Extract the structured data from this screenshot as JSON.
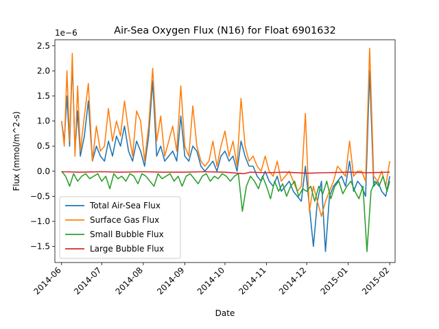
{
  "chart_data": {
    "type": "line",
    "title": "Air-Sea Oxygen Flux (N16) for Float 6901632",
    "xlabel": "Date",
    "ylabel": "Flux (mmol/m^2-s)",
    "y_offset_label": "1e−6",
    "y_scale": 1e-06,
    "xlim": [
      "2014-05-27",
      "2015-02-05"
    ],
    "ylim": [
      -1.82,
      2.62
    ],
    "x_ticks": [
      "2014-06-01",
      "2014-07-01",
      "2014-08-01",
      "2014-09-01",
      "2014-10-01",
      "2014-11-01",
      "2014-12-01",
      "2015-01-01",
      "2015-02-01"
    ],
    "x_tick_labels": [
      "2014-06",
      "2014-07",
      "2014-08",
      "2014-09",
      "2014-10",
      "2014-11",
      "2014-12",
      "2015-01",
      "2015-02"
    ],
    "y_ticks": [
      -1.5,
      -1.0,
      -0.5,
      0.0,
      0.5,
      1.0,
      1.5,
      2.0,
      2.5
    ],
    "y_tick_labels": [
      "−1.5",
      "−1.0",
      "−0.5",
      "0.0",
      "0.5",
      "1.0",
      "1.5",
      "2.0",
      "2.5"
    ],
    "legend_position": "lower-left",
    "grid": false,
    "series": [
      {
        "name": "Total Air-Sea Flux",
        "color": "#1f77b4",
        "x": [
          "2014-06-01",
          "2014-06-03",
          "2014-06-05",
          "2014-06-07",
          "2014-06-09",
          "2014-06-11",
          "2014-06-13",
          "2014-06-15",
          "2014-06-18",
          "2014-06-21",
          "2014-06-24",
          "2014-06-27",
          "2014-06-30",
          "2014-07-03",
          "2014-07-06",
          "2014-07-09",
          "2014-07-12",
          "2014-07-15",
          "2014-07-18",
          "2014-07-21",
          "2014-07-24",
          "2014-07-27",
          "2014-07-30",
          "2014-08-02",
          "2014-08-05",
          "2014-08-08",
          "2014-08-11",
          "2014-08-14",
          "2014-08-17",
          "2014-08-20",
          "2014-08-23",
          "2014-08-26",
          "2014-08-29",
          "2014-09-01",
          "2014-09-04",
          "2014-09-07",
          "2014-09-10",
          "2014-09-13",
          "2014-09-16",
          "2014-09-19",
          "2014-09-22",
          "2014-09-25",
          "2014-09-28",
          "2014-10-01",
          "2014-10-04",
          "2014-10-07",
          "2014-10-10",
          "2014-10-13",
          "2014-10-16",
          "2014-10-19",
          "2014-10-22",
          "2014-10-25",
          "2014-10-28",
          "2014-10-31",
          "2014-11-03",
          "2014-11-06",
          "2014-11-09",
          "2014-11-12",
          "2014-11-15",
          "2014-11-18",
          "2014-11-21",
          "2014-11-24",
          "2014-11-27",
          "2014-11-30",
          "2014-12-03",
          "2014-12-06",
          "2014-12-09",
          "2014-12-12",
          "2014-12-15",
          "2014-12-18",
          "2014-12-21",
          "2014-12-24",
          "2014-12-27",
          "2014-12-30",
          "2015-01-02",
          "2015-01-05",
          "2015-01-08",
          "2015-01-11",
          "2015-01-14",
          "2015-01-17",
          "2015-01-20",
          "2015-01-23",
          "2015-01-26",
          "2015-01-29",
          "2015-02-01"
        ],
        "y": [
          1.0,
          0.6,
          1.5,
          0.5,
          2.2,
          0.4,
          1.2,
          0.3,
          0.7,
          1.4,
          0.2,
          0.5,
          0.3,
          0.2,
          0.6,
          0.3,
          0.7,
          0.5,
          0.9,
          0.4,
          0.2,
          0.6,
          0.4,
          0.1,
          0.7,
          1.8,
          0.3,
          0.5,
          0.2,
          0.3,
          0.4,
          0.2,
          1.1,
          0.3,
          0.2,
          0.5,
          0.4,
          0.1,
          0.0,
          0.1,
          0.2,
          0.0,
          0.3,
          0.4,
          0.2,
          0.3,
          0.0,
          0.6,
          0.3,
          0.1,
          0.1,
          -0.1,
          -0.2,
          0.0,
          -0.2,
          -0.3,
          -0.1,
          -0.4,
          -0.3,
          -0.2,
          -0.4,
          -0.5,
          -0.6,
          0.1,
          -0.7,
          -1.5,
          -0.6,
          -0.2,
          -1.6,
          -0.5,
          -0.3,
          -0.2,
          -0.1,
          -0.3,
          0.2,
          -0.4,
          -0.2,
          -0.3,
          -0.5,
          2.0,
          -0.3,
          -0.2,
          -0.4,
          -0.5,
          -0.1
        ]
      },
      {
        "name": "Surface Gas Flux",
        "color": "#ff7f0e",
        "x": [
          "2014-06-01",
          "2014-06-03",
          "2014-06-05",
          "2014-06-07",
          "2014-06-09",
          "2014-06-11",
          "2014-06-13",
          "2014-06-15",
          "2014-06-18",
          "2014-06-21",
          "2014-06-24",
          "2014-06-27",
          "2014-06-30",
          "2014-07-03",
          "2014-07-06",
          "2014-07-09",
          "2014-07-12",
          "2014-07-15",
          "2014-07-18",
          "2014-07-21",
          "2014-07-24",
          "2014-07-27",
          "2014-07-30",
          "2014-08-02",
          "2014-08-05",
          "2014-08-08",
          "2014-08-11",
          "2014-08-14",
          "2014-08-17",
          "2014-08-20",
          "2014-08-23",
          "2014-08-26",
          "2014-08-29",
          "2014-09-01",
          "2014-09-04",
          "2014-09-07",
          "2014-09-10",
          "2014-09-13",
          "2014-09-16",
          "2014-09-19",
          "2014-09-22",
          "2014-09-25",
          "2014-09-28",
          "2014-10-01",
          "2014-10-04",
          "2014-10-07",
          "2014-10-10",
          "2014-10-13",
          "2014-10-16",
          "2014-10-19",
          "2014-10-22",
          "2014-10-25",
          "2014-10-28",
          "2014-10-31",
          "2014-11-03",
          "2014-11-06",
          "2014-11-09",
          "2014-11-12",
          "2014-11-15",
          "2014-11-18",
          "2014-11-21",
          "2014-11-24",
          "2014-11-27",
          "2014-11-30",
          "2014-12-03",
          "2014-12-06",
          "2014-12-09",
          "2014-12-12",
          "2014-12-15",
          "2014-12-18",
          "2014-12-21",
          "2014-12-24",
          "2014-12-27",
          "2014-12-30",
          "2015-01-02",
          "2015-01-05",
          "2015-01-08",
          "2015-01-11",
          "2015-01-14",
          "2015-01-17",
          "2015-01-20",
          "2015-01-23",
          "2015-01-26",
          "2015-01-29",
          "2015-02-01"
        ],
        "y": [
          1.0,
          0.5,
          2.0,
          0.6,
          2.35,
          0.3,
          1.7,
          0.4,
          1.1,
          1.75,
          0.2,
          0.9,
          0.4,
          0.5,
          1.25,
          0.6,
          1.0,
          0.7,
          1.4,
          0.8,
          0.3,
          1.2,
          1.0,
          0.2,
          0.9,
          2.05,
          0.6,
          1.1,
          0.3,
          0.6,
          0.9,
          0.4,
          1.7,
          0.5,
          0.3,
          1.3,
          0.5,
          0.2,
          0.1,
          0.2,
          0.6,
          0.1,
          0.5,
          0.8,
          0.3,
          0.6,
          0.1,
          1.45,
          0.5,
          0.2,
          0.3,
          0.1,
          0.0,
          0.3,
          0.0,
          -0.1,
          0.2,
          -0.2,
          -0.1,
          0.0,
          -0.2,
          -0.4,
          -0.3,
          1.15,
          -0.8,
          -0.3,
          -0.6,
          -0.9,
          -0.6,
          -0.4,
          -0.2,
          0.1,
          0.0,
          -0.1,
          0.6,
          -0.1,
          0.0,
          0.0,
          -0.2,
          2.45,
          -0.1,
          -0.2,
          0.0,
          -0.3,
          0.2
        ]
      },
      {
        "name": "Small Bubble Flux",
        "color": "#2ca02c",
        "x": [
          "2014-06-01",
          "2014-06-04",
          "2014-06-07",
          "2014-06-10",
          "2014-06-13",
          "2014-06-16",
          "2014-06-19",
          "2014-06-22",
          "2014-06-25",
          "2014-06-28",
          "2014-07-01",
          "2014-07-04",
          "2014-07-07",
          "2014-07-10",
          "2014-07-13",
          "2014-07-16",
          "2014-07-19",
          "2014-07-22",
          "2014-07-25",
          "2014-07-28",
          "2014-07-31",
          "2014-08-03",
          "2014-08-06",
          "2014-08-09",
          "2014-08-12",
          "2014-08-15",
          "2014-08-18",
          "2014-08-21",
          "2014-08-24",
          "2014-08-27",
          "2014-08-30",
          "2014-09-02",
          "2014-09-05",
          "2014-09-08",
          "2014-09-11",
          "2014-09-14",
          "2014-09-17",
          "2014-09-20",
          "2014-09-23",
          "2014-09-26",
          "2014-09-29",
          "2014-10-02",
          "2014-10-05",
          "2014-10-08",
          "2014-10-11",
          "2014-10-14",
          "2014-10-17",
          "2014-10-20",
          "2014-10-23",
          "2014-10-26",
          "2014-10-29",
          "2014-11-01",
          "2014-11-04",
          "2014-11-07",
          "2014-11-10",
          "2014-11-13",
          "2014-11-16",
          "2014-11-19",
          "2014-11-22",
          "2014-11-25",
          "2014-11-28",
          "2014-12-01",
          "2014-12-04",
          "2014-12-07",
          "2014-12-10",
          "2014-12-13",
          "2014-12-16",
          "2014-12-19",
          "2014-12-22",
          "2014-12-25",
          "2014-12-28",
          "2014-12-31",
          "2015-01-03",
          "2015-01-06",
          "2015-01-09",
          "2015-01-12",
          "2015-01-15",
          "2015-01-18",
          "2015-01-21",
          "2015-01-24",
          "2015-01-27",
          "2015-01-30",
          "2015-02-01"
        ],
        "y": [
          0.0,
          -0.1,
          -0.3,
          -0.05,
          -0.2,
          -0.1,
          -0.05,
          -0.15,
          -0.1,
          -0.05,
          -0.2,
          -0.1,
          -0.35,
          -0.05,
          -0.15,
          -0.1,
          -0.2,
          -0.05,
          -0.1,
          -0.25,
          -0.05,
          -0.1,
          -0.2,
          -0.3,
          -0.05,
          -0.15,
          -0.1,
          -0.05,
          -0.2,
          -0.1,
          -0.3,
          -0.1,
          -0.05,
          -0.15,
          -0.25,
          -0.1,
          -0.05,
          -0.2,
          -0.1,
          -0.15,
          -0.05,
          -0.1,
          -0.2,
          -0.1,
          -0.05,
          -0.8,
          -0.3,
          -0.1,
          -0.2,
          -0.35,
          -0.1,
          -0.3,
          -0.55,
          -0.2,
          -0.4,
          -0.25,
          -0.5,
          -0.3,
          -0.2,
          -0.5,
          -0.35,
          -0.4,
          -0.3,
          -0.6,
          -0.3,
          -0.45,
          -0.2,
          -0.55,
          -0.3,
          -0.2,
          -0.45,
          -0.3,
          -0.2,
          -0.4,
          -0.55,
          -0.3,
          -1.6,
          -0.4,
          -0.2,
          -0.3,
          -0.1,
          -0.4,
          -0.2
        ]
      },
      {
        "name": "Large Bubble Flux",
        "color": "#d62728",
        "x": [
          "2014-06-01",
          "2014-06-15",
          "2014-07-01",
          "2014-07-15",
          "2014-08-01",
          "2014-08-15",
          "2014-09-01",
          "2014-09-15",
          "2014-10-01",
          "2014-10-15",
          "2014-10-20",
          "2014-11-01",
          "2014-11-15",
          "2014-12-01",
          "2014-12-15",
          "2015-01-01",
          "2015-01-15",
          "2015-02-01"
        ],
        "y": [
          -0.01,
          -0.02,
          -0.01,
          -0.02,
          -0.01,
          -0.02,
          -0.02,
          -0.01,
          -0.02,
          -0.05,
          -0.02,
          -0.03,
          -0.02,
          -0.04,
          -0.03,
          -0.02,
          -0.03,
          -0.02
        ]
      }
    ]
  }
}
